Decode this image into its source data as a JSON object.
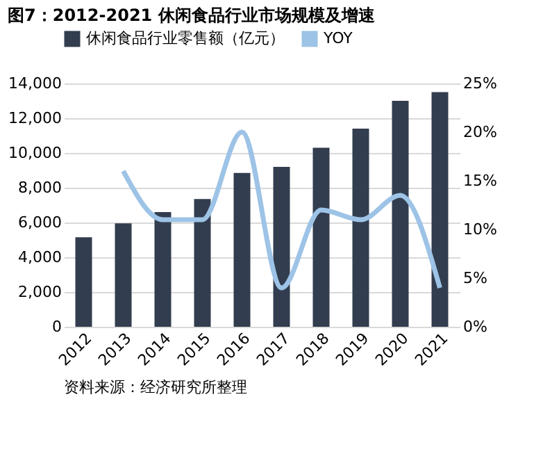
{
  "chart_data": {
    "type": "bar",
    "title": "图7：2012-2021 休闲食品行业市场规模及增速",
    "categories": [
      "2012",
      "2013",
      "2014",
      "2015",
      "2016",
      "2017",
      "2018",
      "2019",
      "2020",
      "2021"
    ],
    "series": [
      {
        "name": "休闲食品行业零售额（亿元）",
        "color": "#323d4f",
        "values": [
          5150,
          5950,
          6600,
          7350,
          8850,
          9200,
          10300,
          11400,
          13000,
          13500
        ]
      },
      {
        "name": "YOY",
        "type": "line",
        "axis": "y2",
        "color": "#9dc3e6",
        "values": [
          null,
          16,
          11,
          11,
          20,
          4,
          12,
          11,
          13.5,
          4
        ]
      }
    ],
    "ylim": [
      0,
      14000
    ],
    "yticks": [
      {
        "value": 0,
        "label": "0"
      },
      {
        "value": 2000,
        "label": "2,000"
      },
      {
        "value": 4000,
        "label": "4,000"
      },
      {
        "value": 6000,
        "label": "6,000"
      },
      {
        "value": 8000,
        "label": "8,000"
      },
      {
        "value": 10000,
        "label": "10,000"
      },
      {
        "value": 12000,
        "label": "12,000"
      },
      {
        "value": 14000,
        "label": "14,000"
      }
    ],
    "y2lim": [
      0,
      25
    ],
    "y2ticks": [
      {
        "value": 0,
        "label": "0%"
      },
      {
        "value": 5,
        "label": "5%"
      },
      {
        "value": 10,
        "label": "10%"
      },
      {
        "value": 15,
        "label": "15%"
      },
      {
        "value": 20,
        "label": "20%"
      },
      {
        "value": 25,
        "label": "25%"
      }
    ],
    "grid": "y",
    "legend": "top",
    "marker": "none",
    "annotations": [
      "资料来源：经济研究所整理"
    ]
  }
}
